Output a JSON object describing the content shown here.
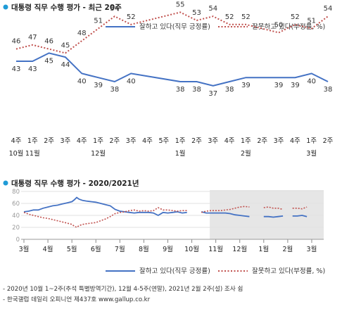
{
  "chart_data": [
    {
      "type": "line",
      "title": "대통령 직무 수행 평가 - 최근 20주",
      "x": [
        "4주",
        "1주",
        "2주",
        "3주",
        "4주",
        "1주",
        "2주",
        "3주",
        "4주",
        "5주",
        "1주",
        "2주",
        "3주",
        "4주",
        "1주",
        "2주",
        "3주",
        "4주",
        "1주",
        "2주"
      ],
      "x_month_labels": [
        {
          "label": "10월",
          "index": 0
        },
        {
          "label": "11월",
          "index": 1
        },
        {
          "label": "12월",
          "index": 5
        },
        {
          "label": "1월",
          "index": 10
        },
        {
          "label": "2월",
          "index": 14
        },
        {
          "label": "3월",
          "index": 18
        }
      ],
      "series": [
        {
          "name": "잘하고 있다(직무 긍정률)",
          "color": "#4472c4",
          "style": "solid",
          "values": [
            43,
            43,
            45,
            44,
            40,
            39,
            38,
            40,
            null,
            null,
            38,
            38,
            37,
            38,
            39,
            null,
            39,
            39,
            40,
            38
          ]
        },
        {
          "name": "잘못하고 있다(부정률, %)",
          "color": "#c0504d",
          "style": "dotted",
          "values": [
            46,
            47,
            46,
            45,
            48,
            51,
            54,
            52,
            null,
            null,
            55,
            53,
            54,
            52,
            52,
            null,
            50,
            52,
            51,
            54
          ]
        }
      ],
      "legend_position": "top-right",
      "grid": false
    },
    {
      "type": "line",
      "title": "대통령 직무 수행 평가 - 2020/2021년",
      "ylim": [
        0,
        80
      ],
      "yticks": [
        0,
        20,
        40,
        60,
        80
      ],
      "x_month_labels": [
        "3월",
        "4월",
        "5월",
        "6월",
        "7월",
        "8월",
        "9월",
        "10월",
        "11월",
        "12월",
        "1월",
        "2월",
        "3월"
      ],
      "highlight_region": "2021년",
      "series": [
        {
          "name": "잘하고 있다(직무 긍정률)",
          "color": "#4472c4",
          "style": "solid",
          "segments": [
            [
              [
                0,
                46
              ],
              [
                0.2,
                47
              ],
              [
                0.4,
                49
              ],
              [
                0.6,
                49
              ],
              [
                0.8,
                52
              ],
              [
                1.0,
                54
              ],
              [
                1.2,
                56
              ],
              [
                1.4,
                57
              ],
              [
                1.6,
                59
              ],
              [
                1.8,
                61
              ],
              [
                2.0,
                63
              ],
              [
                2.1,
                66
              ],
              [
                2.2,
                70
              ],
              [
                2.3,
                67
              ],
              [
                2.45,
                65
              ],
              [
                2.6,
                64
              ],
              [
                2.8,
                63
              ],
              [
                3.0,
                62
              ],
              [
                3.2,
                60
              ],
              [
                3.4,
                58
              ],
              [
                3.6,
                56
              ],
              [
                3.8,
                50
              ],
              [
                4.0,
                47
              ],
              [
                4.2,
                46
              ],
              [
                4.4,
                45
              ],
              [
                4.6,
                44
              ],
              [
                4.8,
                45
              ],
              [
                5.0,
                45
              ],
              [
                5.2,
                45
              ],
              [
                5.4,
                44
              ],
              [
                5.6,
                40
              ],
              [
                5.8,
                45
              ],
              [
                6.0,
                44
              ],
              [
                6.2,
                45
              ],
              [
                6.4,
                46
              ],
              [
                6.6,
                44
              ],
              [
                6.8,
                45
              ]
            ],
            [
              [
                7.4,
                46
              ],
              [
                7.6,
                44
              ],
              [
                7.8,
                44
              ],
              [
                8.0,
                44
              ],
              [
                8.2,
                44
              ],
              [
                8.4,
                44
              ],
              [
                8.6,
                43
              ],
              [
                8.8,
                41
              ],
              [
                9.0,
                40
              ],
              [
                9.2,
                39
              ],
              [
                9.4,
                38
              ]
            ],
            [
              [
                10.0,
                38
              ],
              [
                10.2,
                38
              ],
              [
                10.4,
                37
              ],
              [
                10.6,
                38
              ],
              [
                10.8,
                39
              ]
            ],
            [
              [
                11.2,
                39
              ],
              [
                11.4,
                39
              ],
              [
                11.6,
                40
              ],
              [
                11.8,
                38
              ]
            ]
          ]
        },
        {
          "name": "잘못하고 있다(부정률, %)",
          "color": "#c0504d",
          "style": "dotted",
          "segments": [
            [
              [
                0,
                45
              ],
              [
                0.2,
                42
              ],
              [
                0.4,
                40
              ],
              [
                0.6,
                38
              ],
              [
                0.8,
                36
              ],
              [
                1.0,
                35
              ],
              [
                1.2,
                33
              ],
              [
                1.4,
                31
              ],
              [
                1.6,
                29
              ],
              [
                1.8,
                27
              ],
              [
                2.0,
                25
              ],
              [
                2.1,
                22
              ],
              [
                2.2,
                20
              ],
              [
                2.3,
                23
              ],
              [
                2.45,
                25
              ],
              [
                2.6,
                26
              ],
              [
                2.8,
                27
              ],
              [
                3.0,
                28
              ],
              [
                3.2,
                31
              ],
              [
                3.4,
                34
              ],
              [
                3.6,
                38
              ],
              [
                3.8,
                43
              ],
              [
                4.0,
                45
              ],
              [
                4.2,
                46
              ],
              [
                4.4,
                48
              ],
              [
                4.6,
                49
              ],
              [
                4.8,
                47
              ],
              [
                5.0,
                48
              ],
              [
                5.2,
                47
              ],
              [
                5.4,
                48
              ],
              [
                5.6,
                53
              ],
              [
                5.8,
                49
              ],
              [
                6.0,
                49
              ],
              [
                6.2,
                48
              ],
              [
                6.4,
                47
              ],
              [
                6.6,
                48
              ],
              [
                6.8,
                48
              ]
            ],
            [
              [
                7.4,
                45
              ],
              [
                7.6,
                47
              ],
              [
                7.8,
                48
              ],
              [
                8.0,
                48
              ],
              [
                8.2,
                48
              ],
              [
                8.4,
                49
              ],
              [
                8.6,
                50
              ],
              [
                8.8,
                52
              ],
              [
                9.0,
                54
              ],
              [
                9.2,
                55
              ],
              [
                9.4,
                54
              ]
            ],
            [
              [
                10.0,
                53
              ],
              [
                10.2,
                54
              ],
              [
                10.4,
                52
              ],
              [
                10.6,
                52
              ],
              [
                10.8,
                50
              ]
            ],
            [
              [
                11.2,
                52
              ],
              [
                11.4,
                52
              ],
              [
                11.6,
                51
              ],
              [
                11.8,
                54
              ]
            ]
          ]
        }
      ],
      "legend_position": "bottom-right",
      "grid": true
    }
  ],
  "footnotes": [
    "- 2020년 10월 1~2주(추석 특별방역기간), 12월 4-5주(연말), 2021년 2월 2주(설) 조사 쉼",
    "- 한국갤럽 데일리 오피니언 제437호 www.gallup.co.kr"
  ]
}
